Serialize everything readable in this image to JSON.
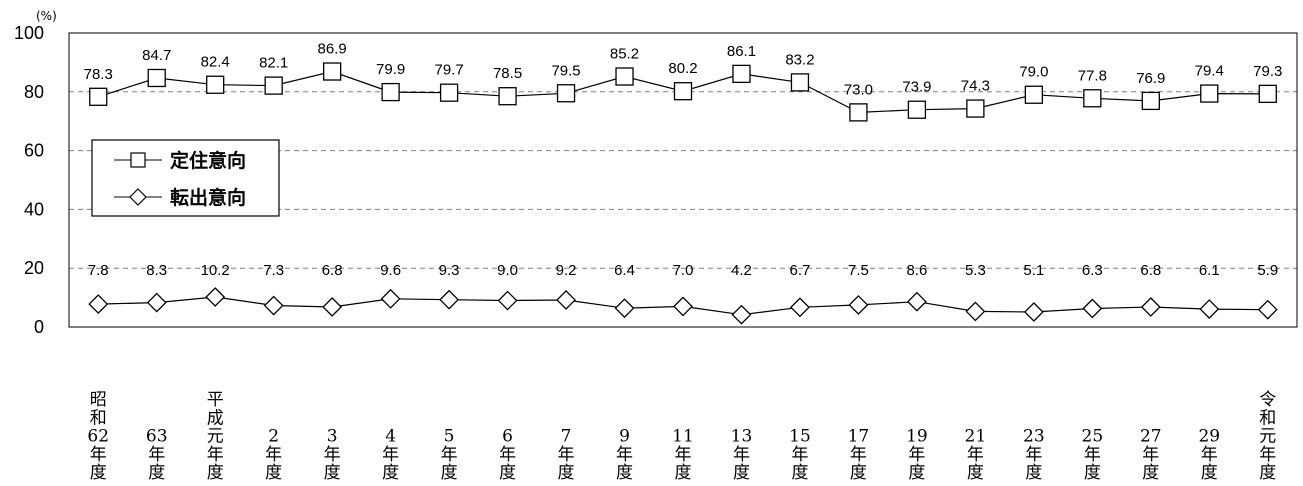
{
  "chart_data": {
    "type": "line",
    "unit_label": "(%)",
    "ylim": [
      0,
      100
    ],
    "yticks": [
      "0",
      "20",
      "40",
      "60",
      "80",
      "100"
    ],
    "grid": "horizontal dashed",
    "legend_position": "left-middle",
    "categories": [
      [
        "昭",
        "和",
        "62",
        "年",
        "度"
      ],
      [
        "63",
        "年",
        "度"
      ],
      [
        "平",
        "成",
        "元",
        "年",
        "度"
      ],
      [
        "2",
        "年",
        "度"
      ],
      [
        "3",
        "年",
        "度"
      ],
      [
        "4",
        "年",
        "度"
      ],
      [
        "5",
        "年",
        "度"
      ],
      [
        "6",
        "年",
        "度"
      ],
      [
        "7",
        "年",
        "度"
      ],
      [
        "9",
        "年",
        "度"
      ],
      [
        "11",
        "年",
        "度"
      ],
      [
        "13",
        "年",
        "度"
      ],
      [
        "15",
        "年",
        "度"
      ],
      [
        "17",
        "年",
        "度"
      ],
      [
        "19",
        "年",
        "度"
      ],
      [
        "21",
        "年",
        "度"
      ],
      [
        "23",
        "年",
        "度"
      ],
      [
        "25",
        "年",
        "度"
      ],
      [
        "27",
        "年",
        "度"
      ],
      [
        "29",
        "年",
        "度"
      ],
      [
        "令",
        "和",
        "元",
        "年",
        "度"
      ]
    ],
    "series": [
      {
        "name": "定住意向",
        "marker": "square",
        "values": [
          78.3,
          84.7,
          82.4,
          82.1,
          86.9,
          79.9,
          79.7,
          78.5,
          79.5,
          85.2,
          80.2,
          86.1,
          83.2,
          73.0,
          73.9,
          74.3,
          79.0,
          77.8,
          76.9,
          79.4,
          79.3
        ],
        "labels": [
          "78.3",
          "84.7",
          "82.4",
          "82.1",
          "86.9",
          "79.9",
          "79.7",
          "78.5",
          "79.5",
          "85.2",
          "80.2",
          "86.1",
          "83.2",
          "73.0",
          "73.9",
          "74.3",
          "79.0",
          "77.8",
          "76.9",
          "79.4",
          "79.3"
        ]
      },
      {
        "name": "転出意向",
        "marker": "diamond",
        "values": [
          7.8,
          8.3,
          10.2,
          7.3,
          6.8,
          9.6,
          9.3,
          9.0,
          9.2,
          6.4,
          7.0,
          4.2,
          6.7,
          7.5,
          8.6,
          5.3,
          5.1,
          6.3,
          6.8,
          6.1,
          5.9
        ],
        "labels": [
          "7.8",
          "8.3",
          "10.2",
          "7.3",
          "6.8",
          "9.6",
          "9.3",
          "9.0",
          "9.2",
          "6.4",
          "7.0",
          "4.2",
          "6.7",
          "7.5",
          "8.6",
          "5.3",
          "5.1",
          "6.3",
          "6.8",
          "6.1",
          "5.9"
        ]
      }
    ]
  }
}
